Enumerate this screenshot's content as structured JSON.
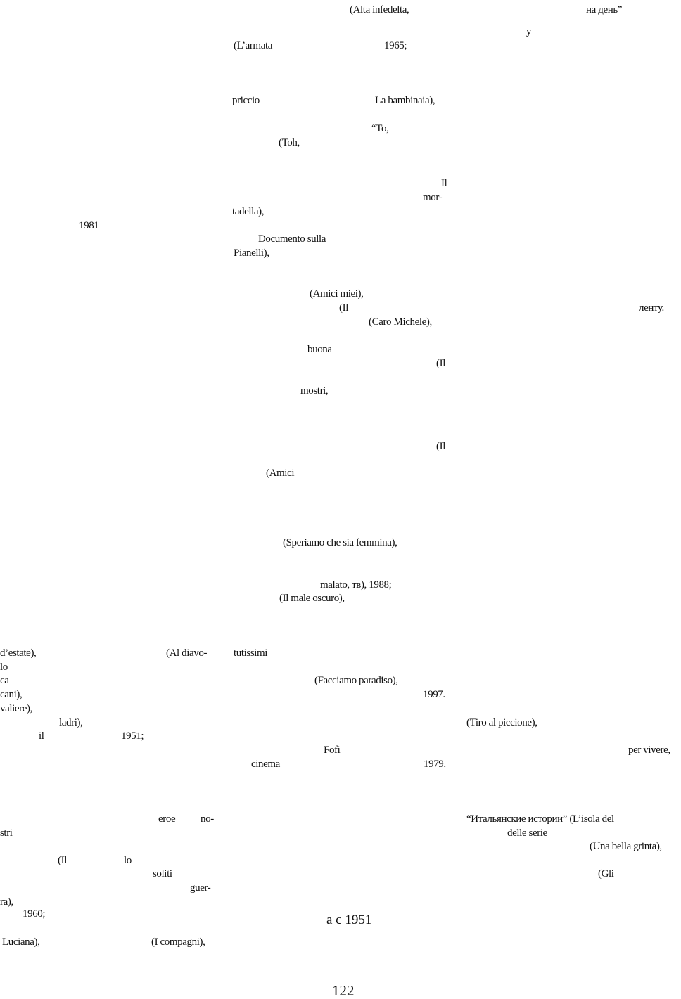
{
  "fragments": [
    "(Alta infedelta,",
    "на день”",
    "у",
    "(L’armata",
    "1965;",
    "priccio",
    "La bambinaia),",
    "“To,",
    "(Toh,",
    "Il",
    "mor-",
    "tadella),",
    "1981",
    "Documento sulla",
    "Pianelli),",
    "(Amici miei),",
    "(Il",
    "ленту.",
    "(Caro Michele),",
    "buona",
    "(Il",
    "mostri,",
    "(Il",
    "(Amici",
    "(Speriamo che sia femmina),",
    "malato, тв), 1988;",
    "(Il male oscuro),",
    "d’estate),",
    "(Al diavo-",
    "tutissimi",
    "lo",
    "ca",
    "(Facciamo paradiso),",
    "cani),",
    "1997.",
    "valiere),",
    "ladri),",
    "(Tiro al piccione),",
    "il",
    "1951;",
    "Fofi",
    "per vivere,",
    "cinema",
    "1979.",
    "eroe",
    "no-",
    "“Итальянские истории” (L’isola del",
    "stri",
    "delle serie",
    "(Una bella grinta),",
    "(Il",
    "lo",
    "soliti",
    "(Gli",
    "guer-",
    "ra),",
    "1960;",
    "Luciana),",
    "(I compagni),"
  ],
  "heading": "а с 1951",
  "page_number": "122"
}
